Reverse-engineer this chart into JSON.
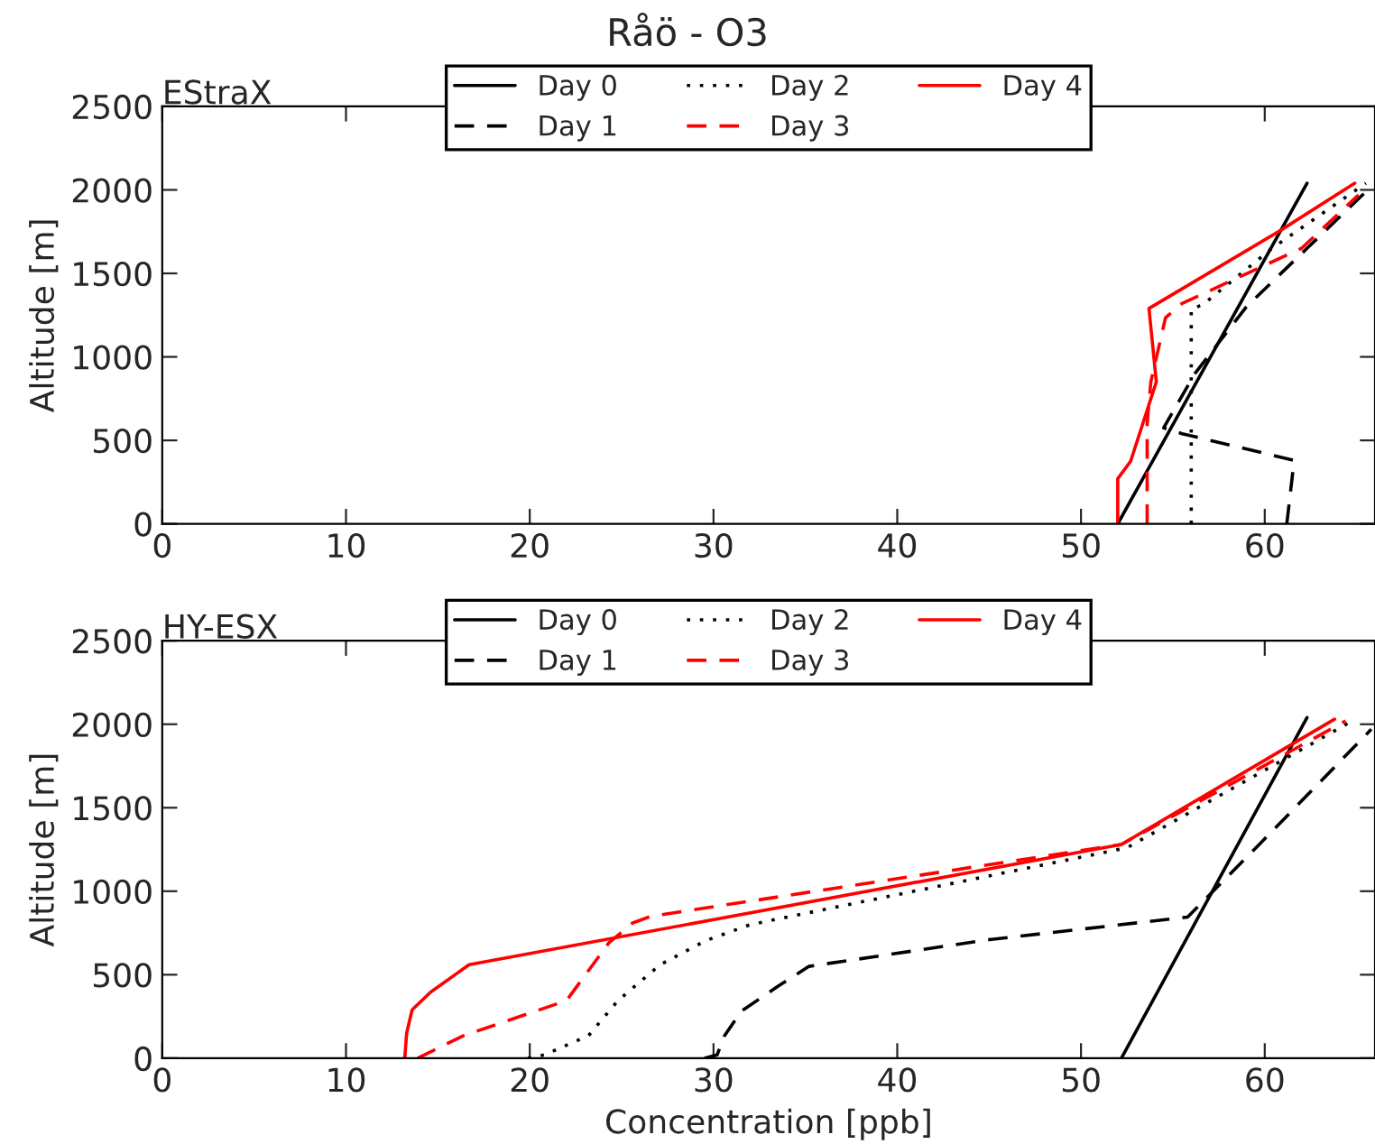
{
  "chart_data": [
    {
      "type": "line",
      "title": "Råö - O3",
      "subtitle": "EStraX",
      "ylabel": "Altitude [m]",
      "xlim": [
        0,
        66
      ],
      "ylim": [
        0,
        2500
      ],
      "xticks": [
        0,
        10,
        20,
        30,
        40,
        50,
        60
      ],
      "yticks": [
        0,
        500,
        1000,
        1500,
        2000,
        2500
      ],
      "grid": false,
      "legend": "top",
      "marker": "none",
      "series": [
        {
          "name": "Day 0",
          "color": "#000000",
          "line_style": "solid",
          "x": [
            52.0,
            62.3
          ],
          "values": [
            0,
            2040
          ]
        },
        {
          "name": "Day 1",
          "color": "#000000",
          "line_style": "dashed",
          "x": [
            61.2,
            61.6,
            55.5,
            54.5,
            56.2,
            59.0,
            62.3,
            65.8
          ],
          "values": [
            0,
            380,
            540,
            575,
            900,
            1300,
            1650,
            2020
          ]
        },
        {
          "name": "Day 2",
          "color": "#000000",
          "line_style": "dotted",
          "x": [
            56.0,
            56.0,
            56.6,
            60.4,
            65.5
          ],
          "values": [
            0,
            1290,
            1310,
            1650,
            2040
          ]
        },
        {
          "name": "Day 3",
          "color": "#ff0000",
          "line_style": "dashed",
          "x": [
            53.6,
            53.6,
            53.8,
            54.6,
            55.5,
            62.0,
            65.1
          ],
          "values": [
            0,
            600,
            850,
            1235,
            1320,
            1650,
            1970
          ]
        },
        {
          "name": "Day 4",
          "color": "#ff0000",
          "line_style": "solid",
          "x": [
            52.0,
            52.0,
            52.7,
            54.1,
            53.7,
            60.9,
            64.9
          ],
          "values": [
            0,
            270,
            375,
            850,
            1290,
            1760,
            2040
          ]
        }
      ]
    },
    {
      "type": "line",
      "subtitle": "HY-ESX",
      "xlabel": "Concentration [ppb]",
      "ylabel": "Altitude [m]",
      "xlim": [
        0,
        66
      ],
      "ylim": [
        0,
        2500
      ],
      "xticks": [
        0,
        10,
        20,
        30,
        40,
        50,
        60
      ],
      "yticks": [
        0,
        500,
        1000,
        1500,
        2000,
        2500
      ],
      "grid": false,
      "legend": "top",
      "marker": "none",
      "series": [
        {
          "name": "Day 0",
          "color": "#000000",
          "line_style": "solid",
          "x": [
            52.2,
            62.3
          ],
          "values": [
            0,
            2040
          ]
        },
        {
          "name": "Day 1",
          "color": "#000000",
          "line_style": "dashed",
          "x": [
            29.5,
            30.2,
            30.6,
            31.5,
            33.5,
            35.2,
            45.0,
            55.8,
            59.7,
            65.8
          ],
          "values": [
            0,
            20,
            135,
            280,
            430,
            550,
            710,
            845,
            1280,
            1970
          ]
        },
        {
          "name": "Day 2",
          "color": "#000000",
          "line_style": "dotted",
          "x": [
            19.9,
            20.8,
            23.2,
            24.8,
            27.1,
            29.6,
            32.0,
            52.5,
            64.6
          ],
          "values": [
            0,
            20,
            135,
            345,
            560,
            705,
            800,
            1260,
            2010
          ]
        },
        {
          "name": "Day 3",
          "color": "#ff0000",
          "line_style": "dashed",
          "x": [
            13.9,
            16.4,
            22.0,
            24.3,
            25.6,
            26.6,
            52.2,
            64.4
          ],
          "values": [
            0,
            135,
            345,
            690,
            810,
            850,
            1280,
            2020
          ]
        },
        {
          "name": "Day 4",
          "color": "#ff0000",
          "line_style": "solid",
          "x": [
            13.2,
            13.3,
            13.6,
            14.6,
            16.7,
            52.2,
            63.8
          ],
          "values": [
            0,
            150,
            290,
            395,
            560,
            1280,
            2030
          ]
        }
      ]
    }
  ]
}
